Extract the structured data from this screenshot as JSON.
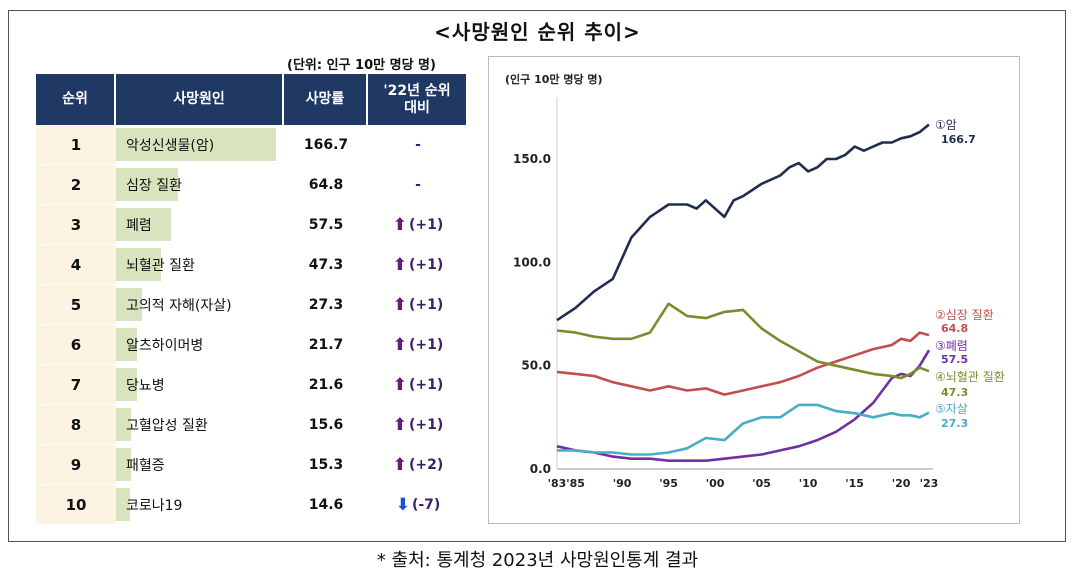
{
  "title": "<사망원인 순위 추이>",
  "unit_note": "(단위: 인구 10만 명당 명)",
  "source": "* 출처: 통계청 2023년 사망원인통계 결과",
  "table": {
    "headers": [
      "순위",
      "사망원인",
      "사망률",
      "'22년 순위 대비"
    ],
    "rows": [
      {
        "rank": "1",
        "cause": "악성신생물(암)",
        "rate": "166.7",
        "change": "-",
        "dir": "none"
      },
      {
        "rank": "2",
        "cause": "심장 질환",
        "rate": "64.8",
        "change": "-",
        "dir": "none"
      },
      {
        "rank": "3",
        "cause": "폐렴",
        "rate": "57.5",
        "change": "(+1)",
        "dir": "up"
      },
      {
        "rank": "4",
        "cause": "뇌혈관 질환",
        "rate": "47.3",
        "change": "(+1)",
        "dir": "up"
      },
      {
        "rank": "5",
        "cause": "고의적 자해(자살)",
        "rate": "27.3",
        "change": "(+1)",
        "dir": "up"
      },
      {
        "rank": "6",
        "cause": "알츠하이머병",
        "rate": "21.7",
        "change": "(+1)",
        "dir": "up"
      },
      {
        "rank": "7",
        "cause": "당뇨병",
        "rate": "21.6",
        "change": "(+1)",
        "dir": "up"
      },
      {
        "rank": "8",
        "cause": "고혈압성 질환",
        "rate": "15.6",
        "change": "(+1)",
        "dir": "up"
      },
      {
        "rank": "9",
        "cause": "패혈증",
        "rate": "15.3",
        "change": "(+2)",
        "dir": "up"
      },
      {
        "rank": "10",
        "cause": "코로나19",
        "rate": "14.6",
        "change": "(-7)",
        "dir": "down"
      }
    ]
  },
  "colors": {
    "header": "#1F3864",
    "bar": "#D7E4BD",
    "rank_bg": "#FDF3E3",
    "up": "#6A1B7A",
    "down": "#1A4FD0"
  },
  "chart_data": [
    {
      "type": "bar",
      "categories": [
        "악성신생물(암)",
        "심장 질환",
        "폐렴",
        "뇌혈관 질환",
        "고의적 자해(자살)",
        "알츠하이머병",
        "당뇨병",
        "고혈압성 질환",
        "패혈증",
        "코로나19"
      ],
      "values": [
        166.7,
        64.8,
        57.5,
        47.3,
        27.3,
        21.7,
        21.6,
        15.6,
        15.3,
        14.6
      ],
      "orientation": "horizontal"
    },
    {
      "type": "line",
      "ylabel": "(인구 10만 명당 명)",
      "ylim": [
        0,
        180
      ],
      "yticks": [
        "0.0",
        "50.0",
        "100.0",
        "150.0"
      ],
      "xticks": [
        "'83",
        "'85",
        "'90",
        "'95",
        "'00",
        "'05",
        "'10",
        "'15",
        "'20",
        "'23"
      ],
      "xlim": [
        1983,
        2023
      ],
      "series": [
        {
          "name": "①암",
          "end_label": "166.7",
          "color": "#1F2D4E",
          "x": [
            1983,
            1985,
            1987,
            1989,
            1990,
            1991,
            1993,
            1995,
            1997,
            1998,
            1999,
            2001,
            2002,
            2003,
            2004,
            2005,
            2006,
            2007,
            2008,
            2009,
            2010,
            2011,
            2012,
            2013,
            2014,
            2015,
            2016,
            2017,
            2018,
            2019,
            2020,
            2021,
            2022,
            2023
          ],
          "y": [
            72,
            78,
            86,
            92,
            102,
            112,
            122,
            128,
            128,
            126,
            130,
            122,
            130,
            132,
            135,
            138,
            140,
            142,
            146,
            148,
            144,
            146,
            150,
            150,
            152,
            156,
            154,
            156,
            158,
            158,
            160,
            161,
            163,
            166.7
          ]
        },
        {
          "name": "②심장 질환",
          "end_label": "64.8",
          "color": "#C0504D",
          "x": [
            1983,
            1985,
            1987,
            1989,
            1991,
            1993,
            1995,
            1997,
            1999,
            2001,
            2003,
            2005,
            2007,
            2009,
            2011,
            2013,
            2015,
            2017,
            2019,
            2020,
            2021,
            2022,
            2023
          ],
          "y": [
            47,
            46,
            45,
            42,
            40,
            38,
            40,
            38,
            39,
            36,
            38,
            40,
            42,
            45,
            49,
            52,
            55,
            58,
            60,
            63,
            62,
            66,
            64.8
          ]
        },
        {
          "name": "③폐렴",
          "end_label": "57.5",
          "color": "#7030A0",
          "x": [
            1983,
            1985,
            1987,
            1989,
            1991,
            1993,
            1995,
            1997,
            1999,
            2001,
            2003,
            2005,
            2007,
            2009,
            2011,
            2013,
            2015,
            2017,
            2019,
            2020,
            2021,
            2022,
            2023
          ],
          "y": [
            11,
            9,
            8,
            6,
            5,
            5,
            4,
            4,
            4,
            5,
            6,
            7,
            9,
            11,
            14,
            18,
            24,
            32,
            44,
            46,
            45,
            50,
            57.5
          ]
        },
        {
          "name": "④뇌혈관 질환",
          "end_label": "47.3",
          "color": "#7F8A2E",
          "x": [
            1983,
            1985,
            1987,
            1989,
            1991,
            1993,
            1995,
            1997,
            1999,
            2001,
            2003,
            2005,
            2007,
            2009,
            2011,
            2013,
            2015,
            2017,
            2019,
            2020,
            2021,
            2022,
            2023
          ],
          "y": [
            67,
            66,
            64,
            63,
            63,
            66,
            80,
            74,
            73,
            76,
            77,
            68,
            62,
            57,
            52,
            50,
            48,
            46,
            45,
            44,
            46,
            49,
            47.3
          ]
        },
        {
          "name": "⑤자살",
          "end_label": "27.3",
          "color": "#4BACC6",
          "x": [
            1983,
            1985,
            1987,
            1989,
            1991,
            1993,
            1995,
            1997,
            1999,
            2001,
            2003,
            2005,
            2007,
            2009,
            2011,
            2013,
            2015,
            2017,
            2019,
            2020,
            2021,
            2022,
            2023
          ],
          "y": [
            9,
            9,
            8,
            8,
            7,
            7,
            8,
            10,
            15,
            14,
            22,
            25,
            25,
            31,
            31,
            28,
            27,
            25,
            27,
            26,
            26,
            25,
            27.3
          ]
        }
      ]
    }
  ]
}
